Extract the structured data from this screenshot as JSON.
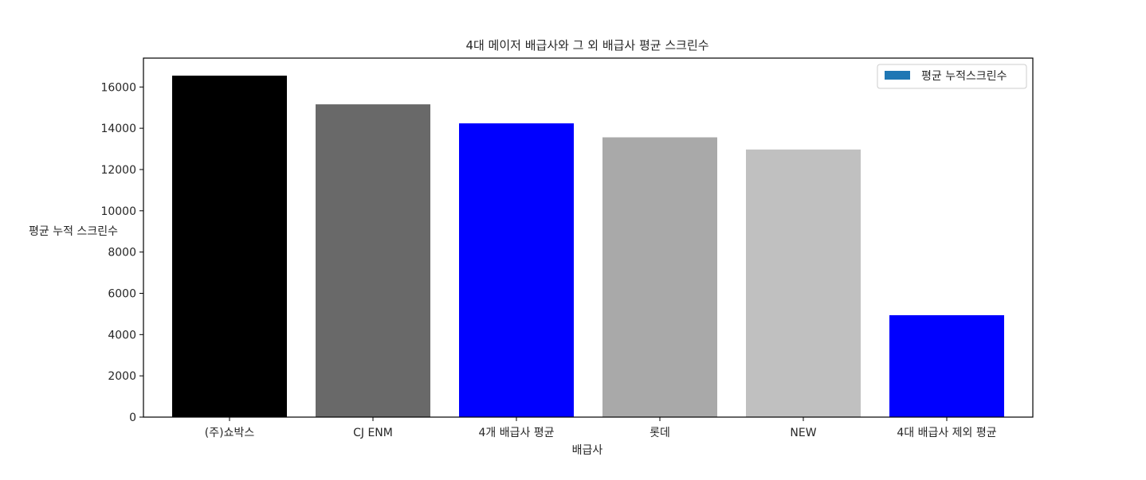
{
  "chart_data": {
    "type": "bar",
    "title": "4대 메이저 배급사와 그 외 배급사 평균 스크린수",
    "xlabel": "배급사",
    "ylabel": "평균 누적 스크린수",
    "categories": [
      "(주)쇼박스",
      "CJ ENM",
      "4개 배급사 평균",
      "롯데",
      "NEW",
      "4대 배급사 제외 평균"
    ],
    "series": [
      {
        "name": "평균 누적스크린수",
        "values": [
          16550,
          15160,
          14240,
          13560,
          12970,
          4940
        ]
      }
    ],
    "bar_colors": [
      "#000000",
      "#696969",
      "#0000ff",
      "#a9a9a9",
      "#c0c0c0",
      "#0000ff"
    ],
    "legend_color": "#1f77b4",
    "ylim": [
      0,
      17400
    ],
    "yticks": [
      0,
      2000,
      4000,
      6000,
      8000,
      10000,
      12000,
      14000,
      16000
    ],
    "grid": false,
    "legend_position": "top-right"
  }
}
